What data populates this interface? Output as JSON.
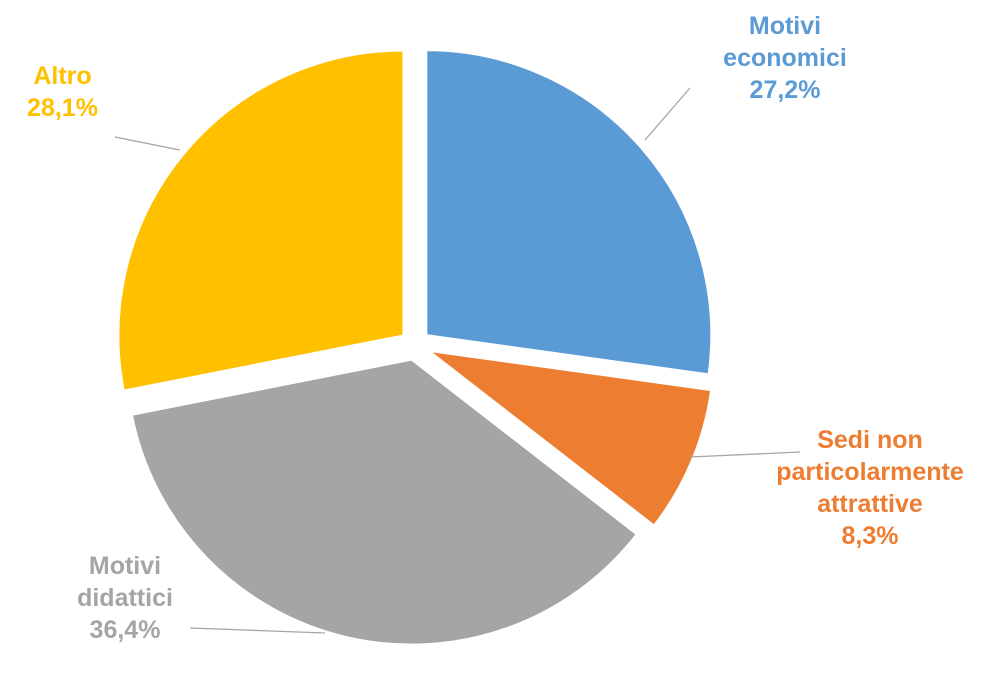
{
  "chart_data": {
    "type": "pie",
    "categories": [
      "Motivi economici",
      "Sedi non particolarmente attrattive",
      "Motivi didattici",
      "Altro"
    ],
    "values": [
      27.2,
      8.3,
      36.4,
      28.1
    ],
    "value_labels": [
      "27,2%",
      "8,3%",
      "36,4%",
      "28,1%"
    ],
    "colors": [
      "#5b9bd5",
      "#ed7d31",
      "#a5a5a5",
      "#ffc000"
    ]
  }
}
